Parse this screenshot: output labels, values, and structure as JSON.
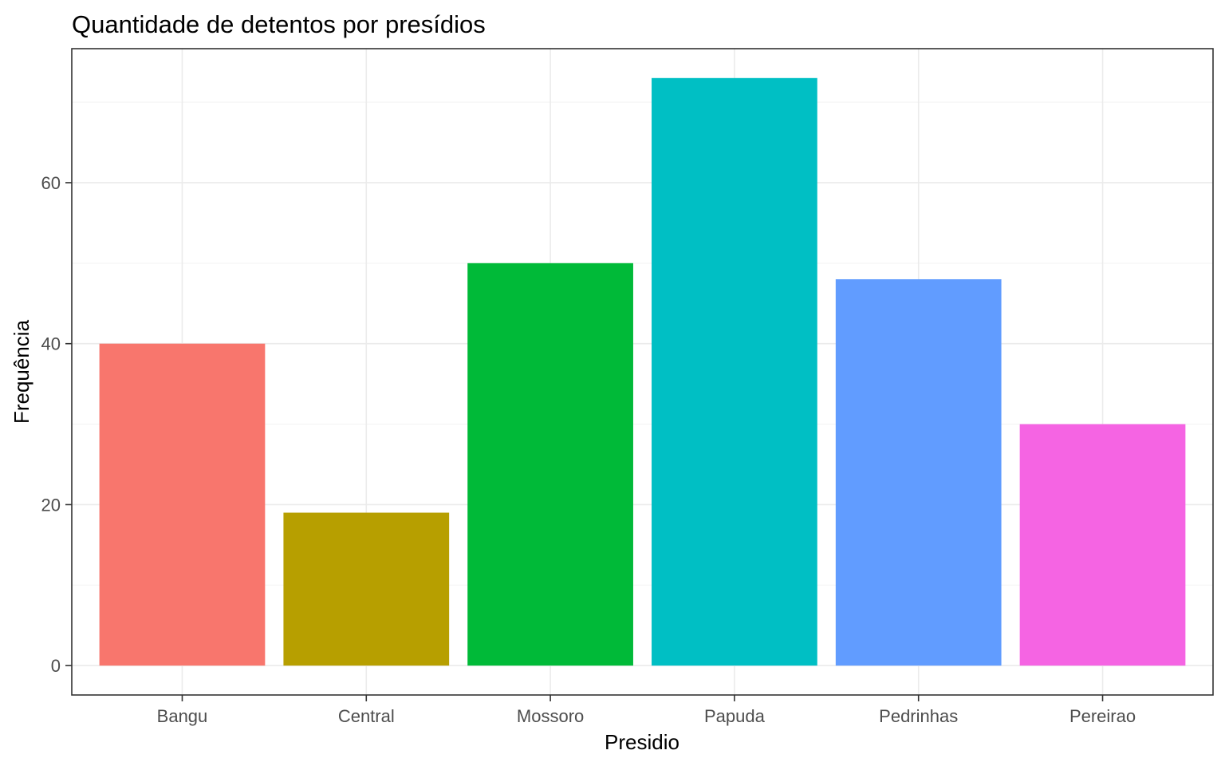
{
  "chart_data": {
    "type": "bar",
    "title": "Quantidade de detentos por presídios",
    "xlabel": "Presidio",
    "ylabel": "Frequência",
    "categories": [
      "Bangu",
      "Central",
      "Mossoro",
      "Papuda",
      "Pedrinhas",
      "Pereirao"
    ],
    "values": [
      40,
      19,
      50,
      73,
      48,
      30
    ],
    "colors": [
      "#F8766D",
      "#B79F00",
      "#00BA38",
      "#00BFC4",
      "#619CFF",
      "#F564E3"
    ],
    "yticks": [
      0,
      20,
      40,
      60
    ],
    "ylim": [
      -3.65,
      76.65
    ],
    "grid": true,
    "legend": "none"
  }
}
